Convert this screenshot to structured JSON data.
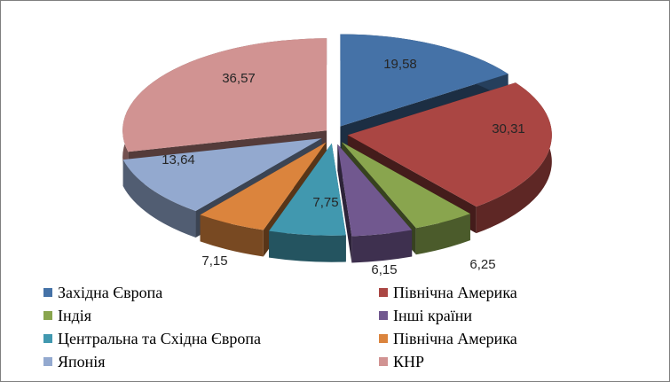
{
  "chart_data": {
    "type": "pie",
    "variant": "3d-exploded",
    "title": "",
    "categories": [
      "Західна Європа",
      "Північна Америка",
      "Індія",
      "Інші країни",
      "Центральна та Східна Європа",
      "Північна Америка",
      "Японія",
      "КНР"
    ],
    "values": [
      19.58,
      30.31,
      6.25,
      6.15,
      7.75,
      7.15,
      13.64,
      36.57
    ],
    "labels": [
      "19,58",
      "30,31",
      "6,25",
      "6,15",
      "7,75",
      "7,15",
      "13,64",
      "36,57"
    ],
    "colors": [
      "#4572A7",
      "#AA4643",
      "#89A54E",
      "#71588F",
      "#4198AF",
      "#DB843D",
      "#93A9CF",
      "#D19392"
    ],
    "legend_position": "bottom",
    "legend_columns": 2
  }
}
